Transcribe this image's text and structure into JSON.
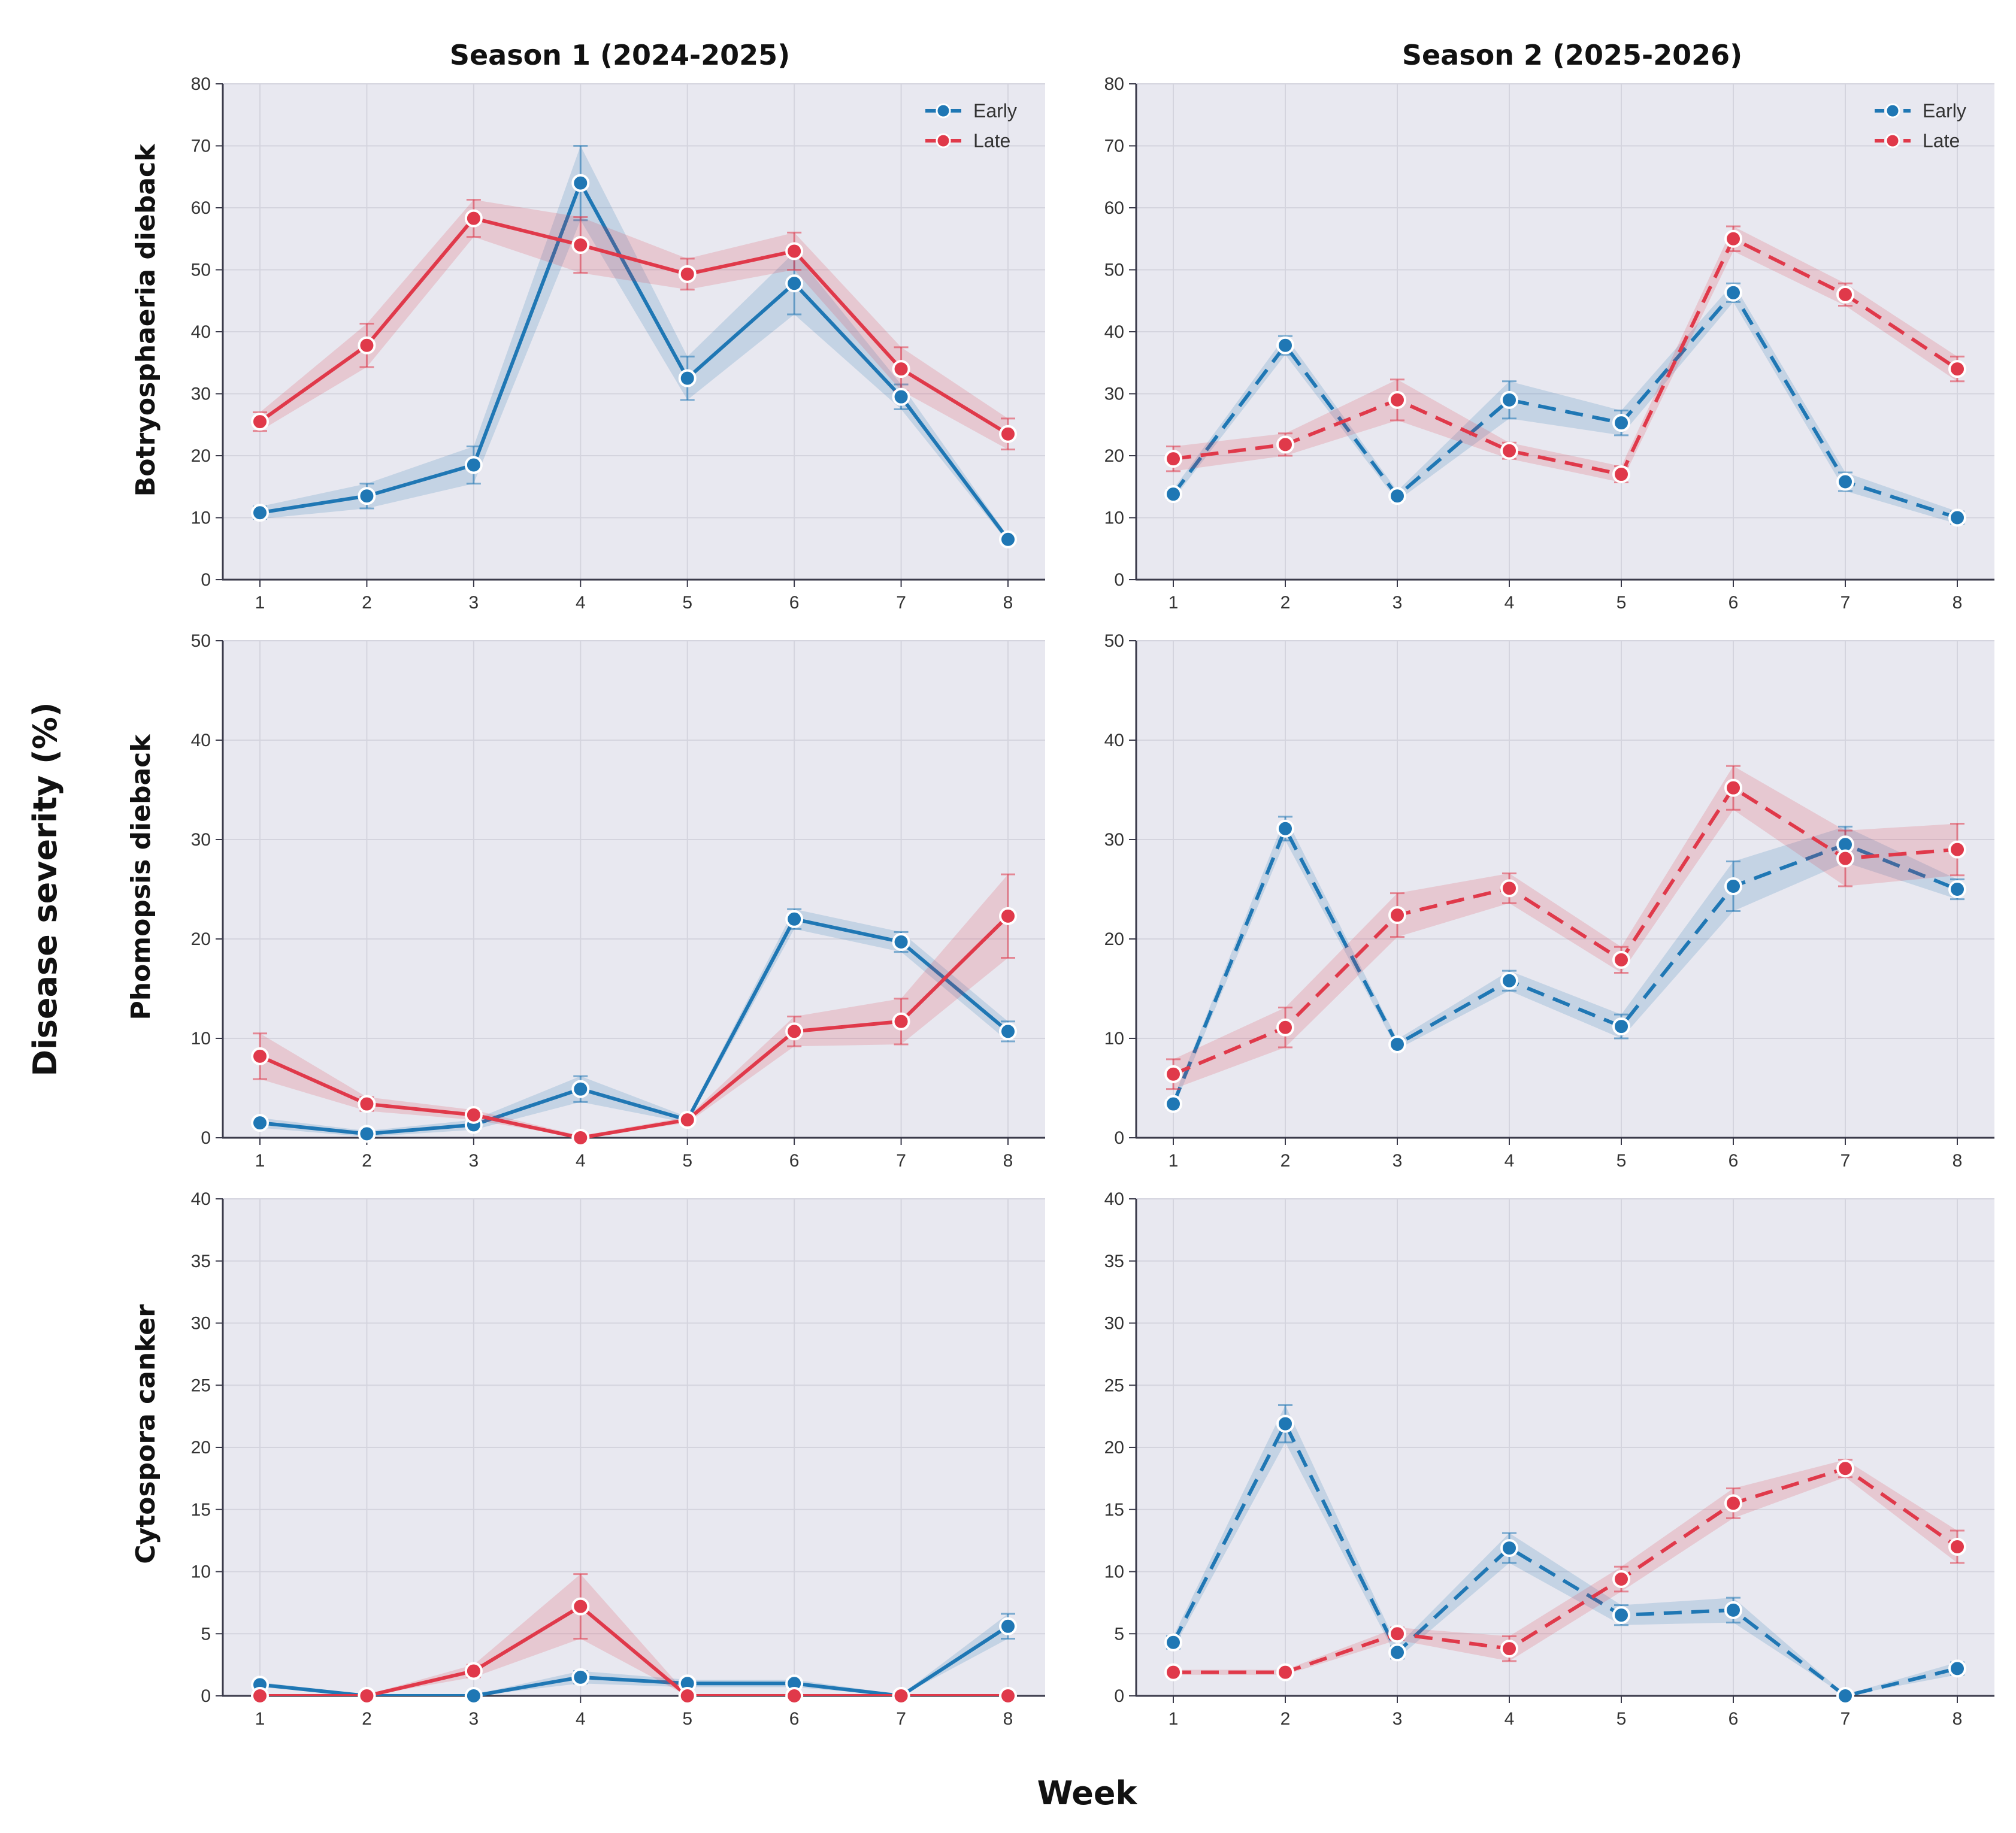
{
  "figure": {
    "ylabel": "Disease severity (%)",
    "xlabel": "Week",
    "columns": [
      "Season 1 (2024-2025)",
      "Season 2 (2025-2026)"
    ],
    "rows": [
      "Botryosphaeria dieback",
      "Phomopsis dieback",
      "Cytospora canker"
    ],
    "colors": {
      "early": "#1f77b4",
      "late": "#e0394a",
      "plot_bg": "#e8e8f0",
      "grid": "#d4d4de"
    }
  },
  "chart_data": [
    {
      "type": "line",
      "row": "Botryosphaeria dieback",
      "column": "Season 1 (2024-2025)",
      "x": [
        1,
        2,
        3,
        4,
        5,
        6,
        7,
        8
      ],
      "ylim": [
        0,
        80
      ],
      "yticks": [
        0,
        10,
        20,
        30,
        40,
        50,
        60,
        70,
        80
      ],
      "grid": true,
      "legend": "top-right",
      "line_style": "solid",
      "series": [
        {
          "name": "Early",
          "values": [
            10.8,
            13.5,
            18.5,
            64,
            32.5,
            47.8,
            29.5,
            6.5
          ],
          "error": [
            1,
            2,
            3,
            6,
            3.5,
            5,
            2,
            0.5
          ]
        },
        {
          "name": "Late",
          "values": [
            25.5,
            37.8,
            58.3,
            54,
            49.3,
            53,
            34,
            23.5
          ],
          "error": [
            1.5,
            3.5,
            3,
            4.5,
            2.5,
            3,
            3.5,
            2.5
          ]
        }
      ]
    },
    {
      "type": "line",
      "row": "Botryosphaeria dieback",
      "column": "Season 2 (2025-2026)",
      "x": [
        1,
        2,
        3,
        4,
        5,
        6,
        7,
        8
      ],
      "ylim": [
        0,
        80
      ],
      "yticks": [
        0,
        10,
        20,
        30,
        40,
        50,
        60,
        70,
        80
      ],
      "grid": true,
      "legend": "top-right",
      "line_style": "dashed",
      "series": [
        {
          "name": "Early",
          "values": [
            13.8,
            37.8,
            13.5,
            29,
            25.3,
            46.3,
            15.8,
            10
          ],
          "error": [
            0.8,
            1.5,
            0.8,
            3,
            2,
            1.5,
            1.5,
            1
          ]
        },
        {
          "name": "Late",
          "values": [
            19.5,
            21.8,
            29,
            20.8,
            17,
            55,
            46,
            34
          ],
          "error": [
            2,
            1.8,
            3.3,
            1.3,
            1.3,
            2,
            1.8,
            2
          ]
        }
      ]
    },
    {
      "type": "line",
      "row": "Phomopsis dieback",
      "column": "Season 1 (2024-2025)",
      "x": [
        1,
        2,
        3,
        4,
        5,
        6,
        7,
        8
      ],
      "ylim": [
        0,
        50
      ],
      "yticks": [
        0,
        10,
        20,
        30,
        40,
        50
      ],
      "grid": true,
      "line_style": "solid",
      "series": [
        {
          "name": "Early",
          "values": [
            1.5,
            0.4,
            1.3,
            4.9,
            1.8,
            22,
            19.7,
            10.7
          ],
          "error": [
            0.5,
            0.3,
            0.5,
            1.3,
            0.3,
            1,
            1,
            1
          ]
        },
        {
          "name": "Late",
          "values": [
            8.2,
            3.4,
            2.3,
            0,
            1.8,
            10.7,
            11.7,
            22.3
          ],
          "error": [
            2.3,
            0.7,
            0.5,
            0.2,
            0.3,
            1.5,
            2.3,
            4.2
          ]
        }
      ]
    },
    {
      "type": "line",
      "row": "Phomopsis dieback",
      "column": "Season 2 (2025-2026)",
      "x": [
        1,
        2,
        3,
        4,
        5,
        6,
        7,
        8
      ],
      "ylim": [
        0,
        50
      ],
      "yticks": [
        0,
        10,
        20,
        30,
        40,
        50
      ],
      "grid": true,
      "line_style": "dashed",
      "series": [
        {
          "name": "Early",
          "values": [
            3.4,
            31.1,
            9.4,
            15.8,
            11.2,
            25.3,
            29.5,
            25
          ],
          "error": [
            0.5,
            1.2,
            0.5,
            1,
            1.2,
            2.5,
            1.8,
            1
          ]
        },
        {
          "name": "Late",
          "values": [
            6.4,
            11.1,
            22.4,
            25.1,
            17.9,
            35.2,
            28.1,
            29
          ],
          "error": [
            1.5,
            2,
            2.2,
            1.5,
            1.3,
            2.2,
            2.8,
            2.6
          ]
        }
      ]
    },
    {
      "type": "line",
      "row": "Cytospora canker",
      "column": "Season 1 (2024-2025)",
      "x": [
        1,
        2,
        3,
        4,
        5,
        6,
        7,
        8
      ],
      "ylim": [
        0,
        40
      ],
      "yticks": [
        0,
        5,
        10,
        15,
        20,
        25,
        30,
        35,
        40
      ],
      "grid": true,
      "line_style": "solid",
      "series": [
        {
          "name": "Early",
          "values": [
            0.9,
            0,
            0,
            1.5,
            1,
            1,
            0,
            5.6
          ],
          "error": [
            0.2,
            0.1,
            0.1,
            0.5,
            0.3,
            0.3,
            0.1,
            1
          ]
        },
        {
          "name": "Late",
          "values": [
            0,
            0,
            2,
            7.2,
            0,
            0,
            0,
            0
          ],
          "error": [
            0.1,
            0.1,
            0.5,
            2.6,
            0.1,
            0.1,
            0.1,
            0.1
          ]
        }
      ]
    },
    {
      "type": "line",
      "row": "Cytospora canker",
      "column": "Season 2 (2025-2026)",
      "x": [
        1,
        2,
        3,
        4,
        5,
        6,
        7,
        8
      ],
      "ylim": [
        0,
        40
      ],
      "yticks": [
        0,
        5,
        10,
        15,
        20,
        25,
        30,
        35,
        40
      ],
      "grid": true,
      "line_style": "dashed",
      "series": [
        {
          "name": "Early",
          "values": [
            4.3,
            21.9,
            3.5,
            11.9,
            6.5,
            6.9,
            0,
            2.2
          ],
          "error": [
            0.5,
            1.5,
            0.5,
            1.2,
            0.8,
            1,
            0.1,
            0.5
          ]
        },
        {
          "name": "Late",
          "values": [
            1.9,
            1.9,
            5,
            3.8,
            9.4,
            15.5,
            18.3,
            12
          ],
          "error": [
            0.2,
            0.2,
            0.5,
            1,
            1,
            1.2,
            0.7,
            1.3
          ]
        }
      ]
    }
  ]
}
